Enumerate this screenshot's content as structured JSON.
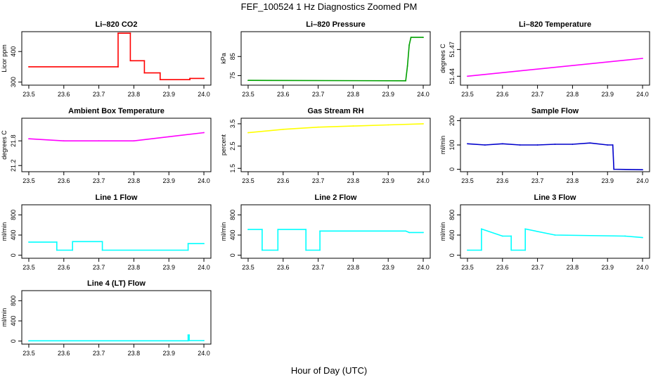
{
  "figure": {
    "title": "FEF_100524  1 Hz Diagnostics Zoomed PM",
    "xlabel": "Hour of Day (UTC)"
  },
  "chart_data": [
    {
      "type": "line",
      "title": "Li–820 CO2",
      "ylabel": "Licor ppm",
      "color": "#ff0000",
      "xlim": [
        23.48,
        24.02
      ],
      "ylim": [
        290,
        465
      ],
      "xticks": [
        "23.5",
        "23.6",
        "23.7",
        "23.8",
        "23.9",
        "24.0"
      ],
      "yticks": [
        "300",
        "400"
      ],
      "series": [
        {
          "x": [
            23.5,
            23.755,
            23.755,
            23.79,
            23.79,
            23.83,
            23.83,
            23.875,
            23.875,
            23.96,
            23.96,
            24.0
          ],
          "y": [
            350,
            350,
            460,
            460,
            370,
            370,
            330,
            330,
            308,
            308,
            312,
            312
          ]
        }
      ]
    },
    {
      "type": "line",
      "title": "Li–820 Pressure",
      "ylabel": "kPa",
      "color": "#00a000",
      "xlim": [
        23.48,
        24.02
      ],
      "ylim": [
        70,
        98
      ],
      "xticks": [
        "23.5",
        "23.6",
        "23.7",
        "23.8",
        "23.9",
        "24.0"
      ],
      "yticks": [
        "75",
        "85"
      ],
      "series": [
        {
          "x": [
            23.5,
            23.95,
            23.955,
            23.96,
            23.965,
            24.0
          ],
          "y": [
            72.5,
            72.3,
            80,
            91,
            95,
            95
          ]
        }
      ]
    },
    {
      "type": "line",
      "title": "Li–820 Temperature",
      "ylabel": "degrees C",
      "color": "#ff00ff",
      "xlim": [
        23.48,
        24.02
      ],
      "ylim": [
        51.43,
        51.49
      ],
      "xticks": [
        "23.5",
        "23.6",
        "23.7",
        "23.8",
        "23.9",
        "24.0"
      ],
      "yticks": [
        "51.44",
        "51.47"
      ],
      "series": [
        {
          "x": [
            23.5,
            24.0
          ],
          "y": [
            51.44,
            51.46
          ]
        }
      ]
    },
    {
      "type": "line",
      "title": "Ambient Box Temperature",
      "ylabel": "degrees C",
      "color": "#ff00ff",
      "xlim": [
        23.48,
        24.02
      ],
      "ylim": [
        21.05,
        22.35
      ],
      "xticks": [
        "23.5",
        "23.6",
        "23.7",
        "23.8",
        "23.9",
        "24.0"
      ],
      "yticks": [
        "21.2",
        "21.8"
      ],
      "series": [
        {
          "x": [
            23.5,
            23.6,
            23.7,
            23.8,
            23.9,
            24.0
          ],
          "y": [
            21.85,
            21.8,
            21.8,
            21.8,
            21.9,
            22.0
          ]
        }
      ]
    },
    {
      "type": "line",
      "title": "Gas Stream RH",
      "ylabel": "percent",
      "color": "#ffff00",
      "xlim": [
        23.48,
        24.02
      ],
      "ylim": [
        1.35,
        3.75
      ],
      "xticks": [
        "23.5",
        "23.6",
        "23.7",
        "23.8",
        "23.9",
        "24.0"
      ],
      "yticks": [
        "1.5",
        "2.5",
        "3.5"
      ],
      "series": [
        {
          "x": [
            23.5,
            23.6,
            23.7,
            23.8,
            23.9,
            24.0
          ],
          "y": [
            3.1,
            3.25,
            3.35,
            3.4,
            3.45,
            3.5
          ]
        }
      ]
    },
    {
      "type": "line",
      "title": "Sample Flow",
      "ylabel": "ml/min",
      "color": "#0000cc",
      "xlim": [
        23.48,
        24.02
      ],
      "ylim": [
        -10,
        210
      ],
      "xticks": [
        "23.5",
        "23.6",
        "23.7",
        "23.8",
        "23.9",
        "24.0"
      ],
      "yticks": [
        "0",
        "100",
        "200"
      ],
      "series": [
        {
          "x": [
            23.5,
            23.55,
            23.6,
            23.65,
            23.7,
            23.75,
            23.8,
            23.85,
            23.9,
            23.915,
            23.918,
            24.0
          ],
          "y": [
            105,
            100,
            105,
            100,
            100,
            103,
            103,
            108,
            100,
            100,
            0,
            -2
          ]
        }
      ]
    },
    {
      "type": "line",
      "title": "Line 1 Flow",
      "ylabel": "ml/min",
      "color": "#00ffff",
      "xlim": [
        23.48,
        24.02
      ],
      "ylim": [
        -60,
        1000
      ],
      "xticks": [
        "23.5",
        "23.6",
        "23.7",
        "23.8",
        "23.9",
        "24.0"
      ],
      "yticks": [
        "0",
        "400",
        "800"
      ],
      "series": [
        {
          "x": [
            23.5,
            23.58,
            23.58,
            23.625,
            23.625,
            23.71,
            23.71,
            23.955,
            23.955,
            24.0
          ],
          "y": [
            260,
            260,
            100,
            100,
            270,
            270,
            100,
            100,
            230,
            230
          ]
        }
      ]
    },
    {
      "type": "line",
      "title": "Line 2 Flow",
      "ylabel": "ml/min",
      "color": "#00ffff",
      "xlim": [
        23.48,
        24.02
      ],
      "ylim": [
        -60,
        1000
      ],
      "xticks": [
        "23.5",
        "23.6",
        "23.7",
        "23.8",
        "23.9",
        "24.0"
      ],
      "yticks": [
        "0",
        "400",
        "800"
      ],
      "series": [
        {
          "x": [
            23.5,
            23.54,
            23.54,
            23.585,
            23.585,
            23.665,
            23.665,
            23.705,
            23.705,
            23.95,
            23.96,
            24.0
          ],
          "y": [
            510,
            510,
            100,
            100,
            510,
            510,
            100,
            100,
            480,
            480,
            450,
            450
          ]
        }
      ]
    },
    {
      "type": "line",
      "title": "Line 3 Flow",
      "ylabel": "ml/min",
      "color": "#00ffff",
      "xlim": [
        23.48,
        24.02
      ],
      "ylim": [
        -60,
        1000
      ],
      "xticks": [
        "23.5",
        "23.6",
        "23.7",
        "23.8",
        "23.9",
        "24.0"
      ],
      "yticks": [
        "0",
        "400",
        "800"
      ],
      "series": [
        {
          "x": [
            23.5,
            23.54,
            23.54,
            23.6,
            23.625,
            23.625,
            23.665,
            23.665,
            23.75,
            23.95,
            24.0
          ],
          "y": [
            100,
            100,
            520,
            380,
            380,
            100,
            100,
            520,
            400,
            380,
            350
          ]
        }
      ]
    },
    {
      "type": "line",
      "title": "Line 4 (LT) Flow",
      "ylabel": "ml/min",
      "color": "#00ffff",
      "xlim": [
        23.48,
        24.02
      ],
      "ylim": [
        -60,
        1000
      ],
      "xticks": [
        "23.5",
        "23.6",
        "23.7",
        "23.8",
        "23.9",
        "24.0"
      ],
      "yticks": [
        "0",
        "400",
        "800"
      ],
      "series": [
        {
          "x": [
            23.5,
            23.955,
            23.955,
            23.958,
            23.958,
            24.0
          ],
          "y": [
            5,
            5,
            120,
            120,
            10,
            10
          ]
        }
      ]
    }
  ]
}
